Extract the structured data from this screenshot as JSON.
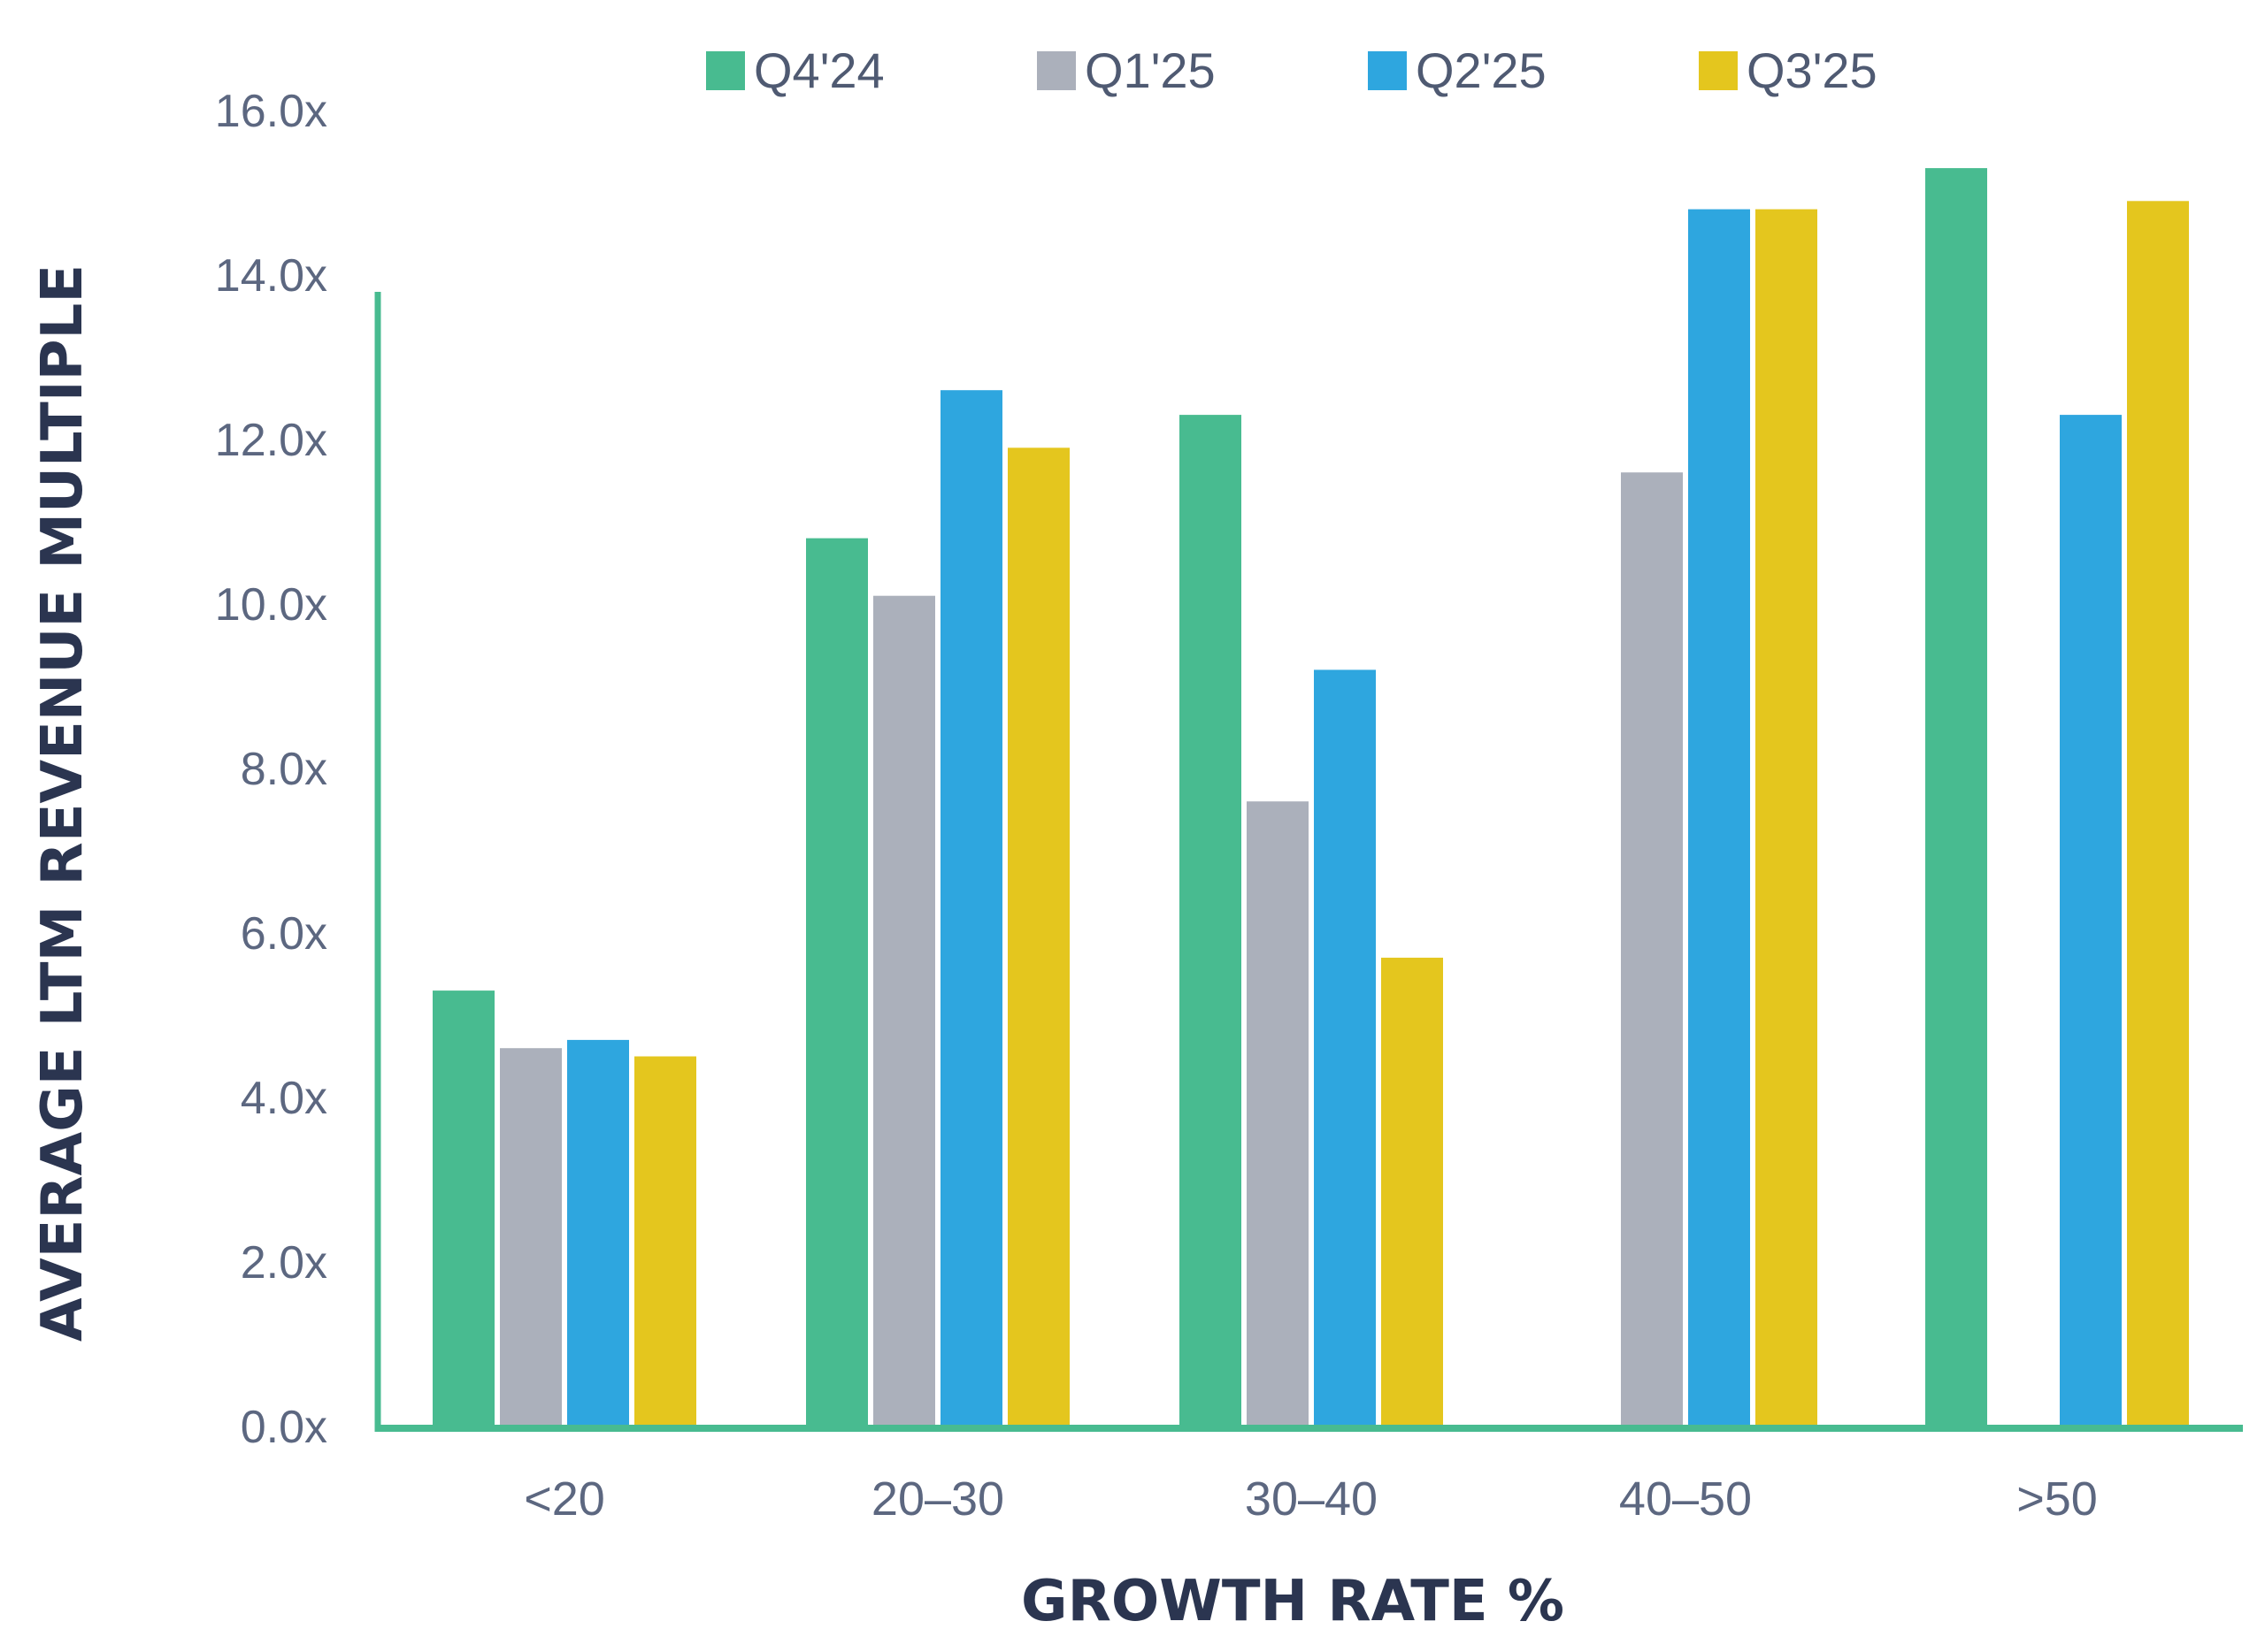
{
  "chart_data": {
    "type": "bar",
    "xlabel": "GROWTH RATE %",
    "ylabel": "AVERAGE LTM REVENUE MULTIPLE",
    "ylim": [
      0,
      16
    ],
    "y_ticks": [
      0,
      2,
      4,
      6,
      8,
      10,
      12,
      14,
      16
    ],
    "y_tick_labels": [
      "0.0x",
      "2.0x",
      "4.0x",
      "6.0x",
      "8.0x",
      "10.0x",
      "12.0x",
      "14.0x",
      "16.0x"
    ],
    "legend_position": "top",
    "grid": false,
    "categories": [
      "<20",
      "20–30",
      "30–40",
      "40–50",
      ">50"
    ],
    "series": [
      {
        "name": "Q4'24",
        "color": "#48bb90",
        "values": [
          5.3,
          10.8,
          12.3,
          null,
          15.3
        ]
      },
      {
        "name": "Q1'25",
        "color": "#abb0bb",
        "values": [
          4.6,
          10.1,
          7.6,
          11.6,
          null
        ]
      },
      {
        "name": "Q2'25",
        "color": "#2ea6df",
        "values": [
          4.7,
          12.6,
          9.2,
          14.8,
          12.3
        ]
      },
      {
        "name": "Q3'25",
        "color": "#e4c61e",
        "values": [
          4.5,
          11.9,
          5.7,
          14.8,
          14.9
        ]
      }
    ],
    "axis_color": "#48bb90"
  }
}
